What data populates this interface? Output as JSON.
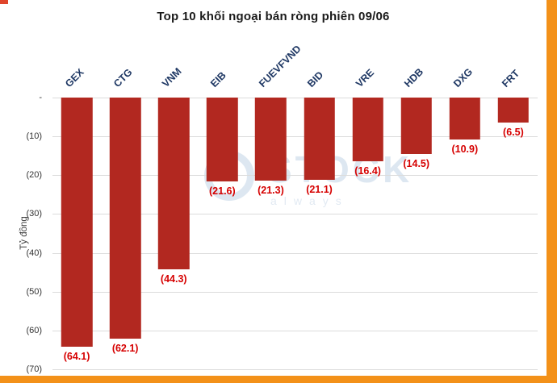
{
  "chart_data": {
    "type": "bar",
    "title": "Top 10 khối ngoại bán ròng phiên 09/06",
    "xlabel": "",
    "ylabel": "Tỷ đồng",
    "categories": [
      "GEX",
      "CTG",
      "VNM",
      "EIB",
      "FUEVFVND",
      "BID",
      "VRE",
      "HDB",
      "DXG",
      "FRT"
    ],
    "values": [
      -64.1,
      -62.1,
      -44.3,
      -21.6,
      -21.3,
      -21.1,
      -16.4,
      -14.5,
      -10.9,
      -6.5
    ],
    "value_labels": [
      "(64.1)",
      "(62.1)",
      "(44.3)",
      "(21.6)",
      "(21.3)",
      "(21.1)",
      "(16.4)",
      "(14.5)",
      "(10.9)",
      "(6.5)"
    ],
    "ytick_labels": [
      "-",
      "(10)",
      "(20)",
      "(30)",
      "(40)",
      "(50)",
      "(60)",
      "(70)"
    ],
    "ylim": [
      -70,
      0
    ],
    "grid": true,
    "legend_position": "none",
    "bar_color": "#b22820",
    "value_label_color": "#d60000",
    "category_label_color": "#1f3864"
  },
  "watermark": {
    "text": "STOCK",
    "tagline": "always"
  }
}
